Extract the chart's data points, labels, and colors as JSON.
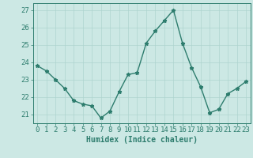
{
  "x": [
    0,
    1,
    2,
    3,
    4,
    5,
    6,
    7,
    8,
    9,
    10,
    11,
    12,
    13,
    14,
    15,
    16,
    17,
    18,
    19,
    20,
    21,
    22,
    23
  ],
  "y": [
    23.8,
    23.5,
    23.0,
    22.5,
    21.8,
    21.6,
    21.5,
    20.8,
    21.2,
    22.3,
    23.3,
    23.4,
    25.1,
    25.8,
    26.4,
    27.0,
    25.1,
    23.7,
    22.6,
    21.1,
    21.3,
    22.2,
    22.5,
    22.9
  ],
  "line_color": "#2e7d6e",
  "marker": "*",
  "marker_size": 3.5,
  "bg_color": "#cce8e4",
  "grid_color": "#aed4cf",
  "axis_color": "#2e7d6e",
  "xlabel": "Humidex (Indice chaleur)",
  "xlabel_fontsize": 7,
  "tick_fontsize": 6.5,
  "ylim": [
    20.5,
    27.4
  ],
  "yticks": [
    21,
    22,
    23,
    24,
    25,
    26,
    27
  ],
  "xticks": [
    0,
    1,
    2,
    3,
    4,
    5,
    6,
    7,
    8,
    9,
    10,
    11,
    12,
    13,
    14,
    15,
    16,
    17,
    18,
    19,
    20,
    21,
    22,
    23
  ],
  "linewidth": 1.0
}
